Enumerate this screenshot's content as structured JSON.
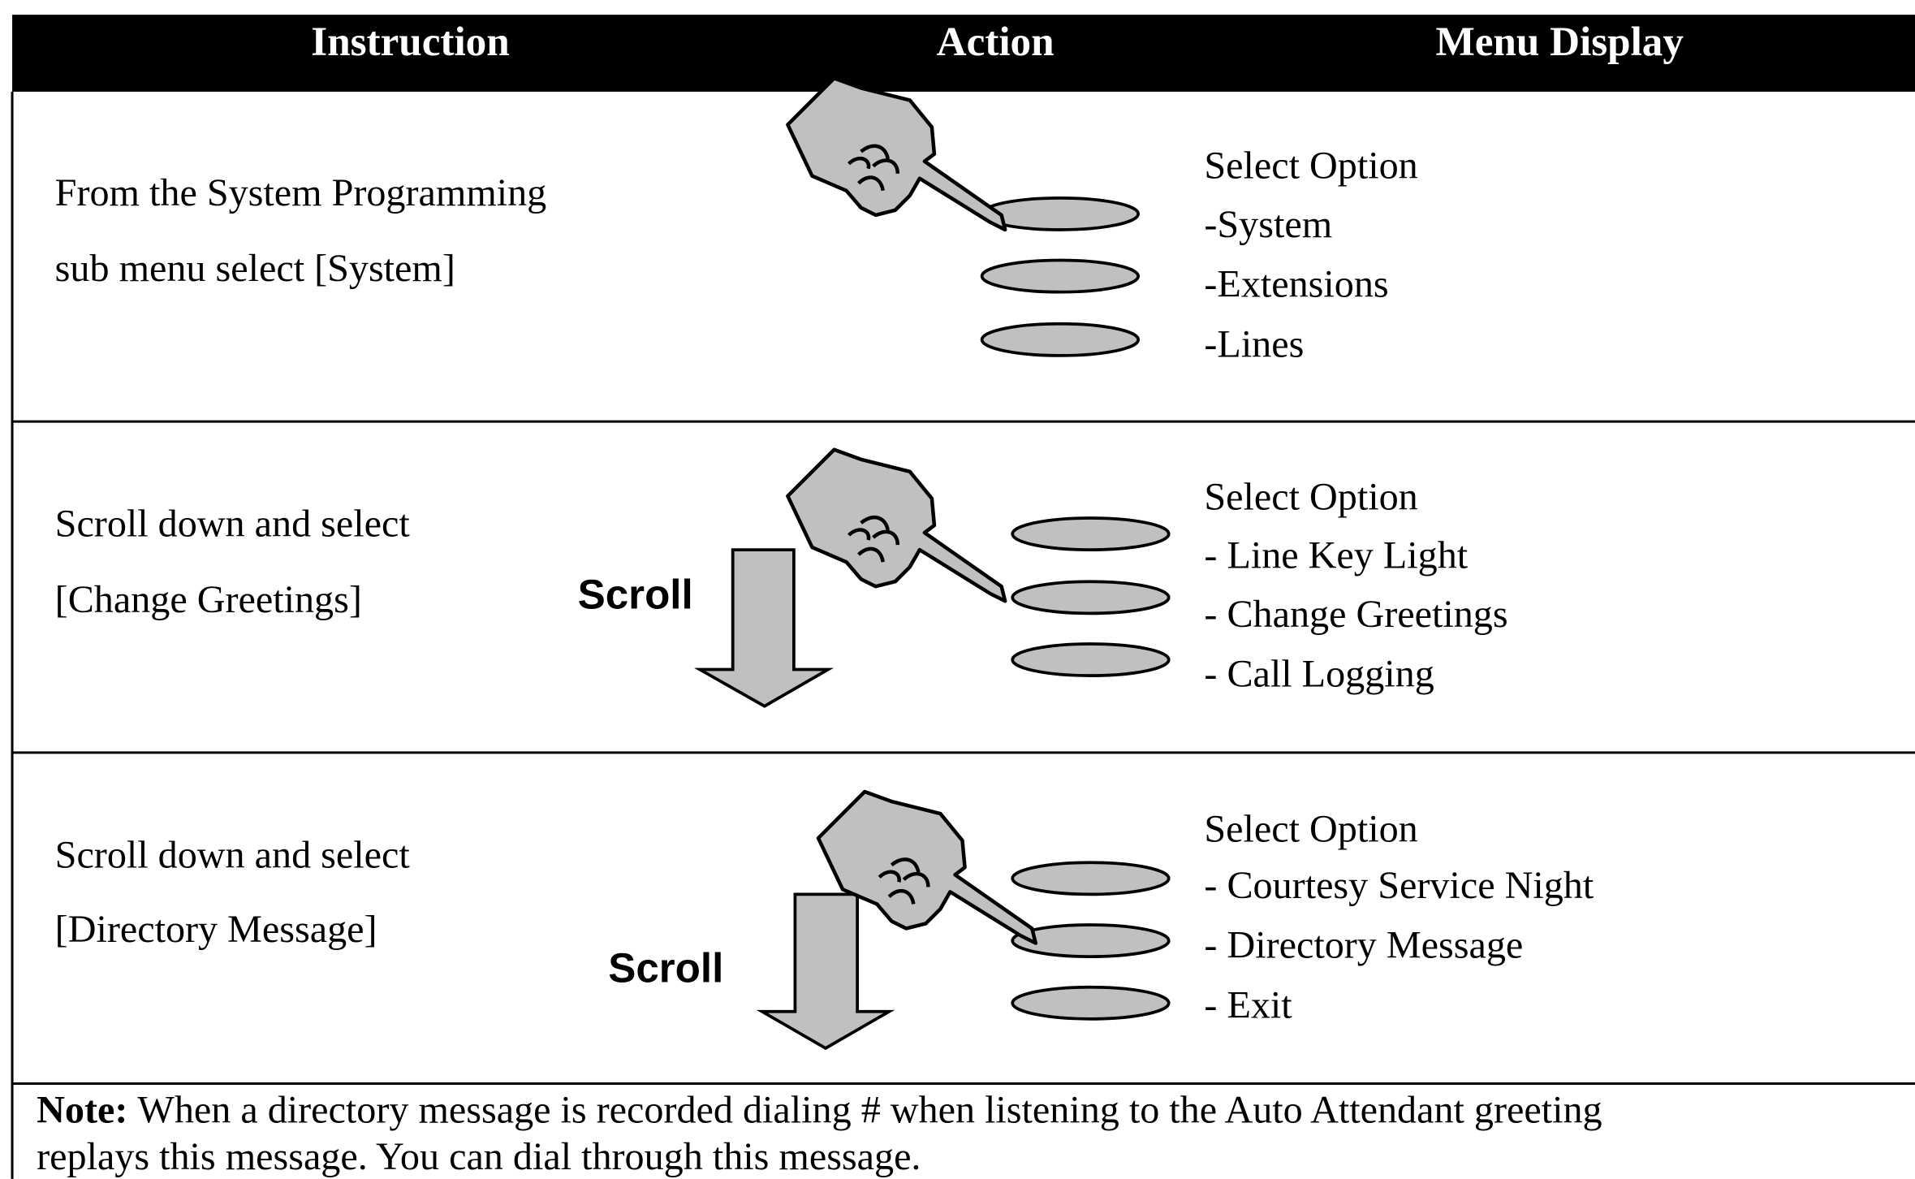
{
  "table": {
    "header": [
      "Instruction",
      "Action",
      "Menu Display"
    ],
    "rows": [
      {
        "instruction": [
          "From the System Programming",
          "sub menu select [System]"
        ],
        "menu": [
          "Select Option",
          "-System",
          "-Extensions",
          "-Lines"
        ]
      },
      {
        "instruction": [
          "Scroll down and select",
          "[Change Greetings]"
        ],
        "action": "Scroll",
        "menu": [
          "Select Option",
          "- Line Key Light",
          "- Change Greetings",
          "- Call Logging"
        ]
      },
      {
        "instruction": [
          "Scroll down and select",
          "[Directory Message]"
        ],
        "action": "Scroll",
        "menu": [
          "Select Option",
          "- Courtesy Service Night",
          "- Directory Message",
          "- Exit"
        ]
      }
    ],
    "note": {
      "label": "Note:",
      "lines": [
        "When a directory message is recorded dialing # when listening to the Auto Attendant greeting",
        "replays this message. You can dial through this message."
      ]
    }
  }
}
